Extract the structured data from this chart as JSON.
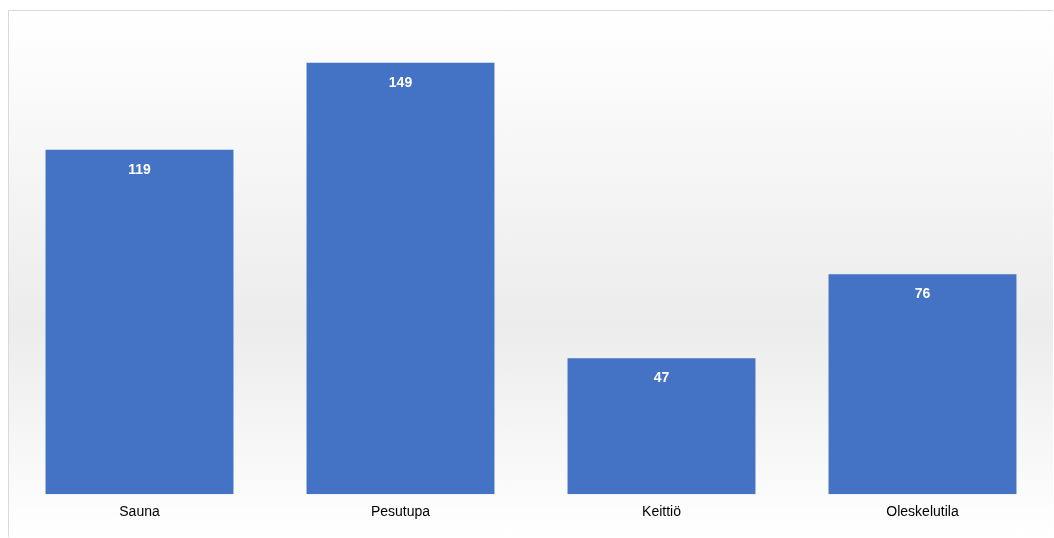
{
  "chart_data": {
    "type": "bar",
    "categories": [
      "Sauna",
      "Pesutupa",
      "Keittiö",
      "Oleskelutila"
    ],
    "values": [
      119,
      149,
      47,
      76
    ],
    "color": "#4472c4",
    "data_labels": true,
    "grid": false,
    "legend": false
  }
}
